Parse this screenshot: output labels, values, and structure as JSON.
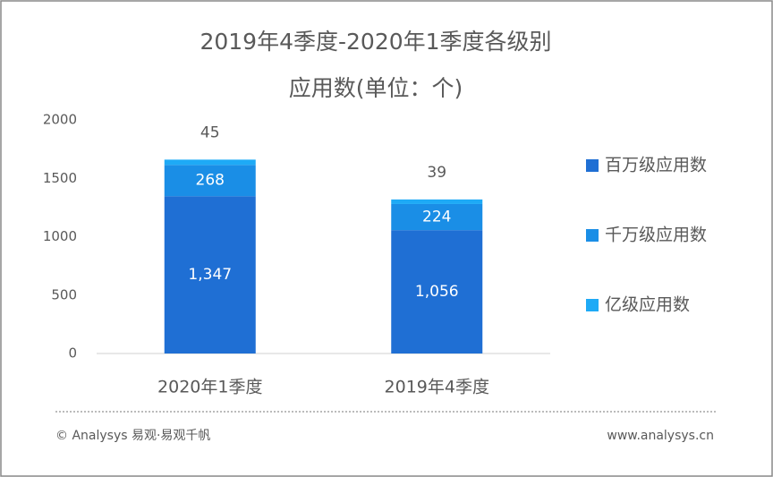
{
  "chart_data": {
    "type": "stacked_bar",
    "title_lines": [
      "2019年4季度-2020年1季度各级别",
      "应用数(单位：个)"
    ],
    "categories": [
      "2020年1季度",
      "2019年4季度"
    ],
    "series": [
      {
        "name": "百万级应用数",
        "color": "#1f6fd4",
        "values": [
          1347,
          1056
        ],
        "value_labels": [
          "1,347",
          "1,056"
        ]
      },
      {
        "name": "千万级应用数",
        "color": "#1a8ee6",
        "values": [
          268,
          224
        ]
      },
      {
        "name": "亿级应用数",
        "color": "#1eaaf6",
        "values": [
          45,
          39
        ]
      }
    ],
    "ylim": [
      0,
      2000
    ],
    "yticks": [
      0,
      500,
      1000,
      1500,
      2000
    ],
    "grid": false,
    "legend": "right",
    "footer_left": "© Analysys 易观·易观千帆",
    "footer_right": "www.analysys.cn"
  }
}
